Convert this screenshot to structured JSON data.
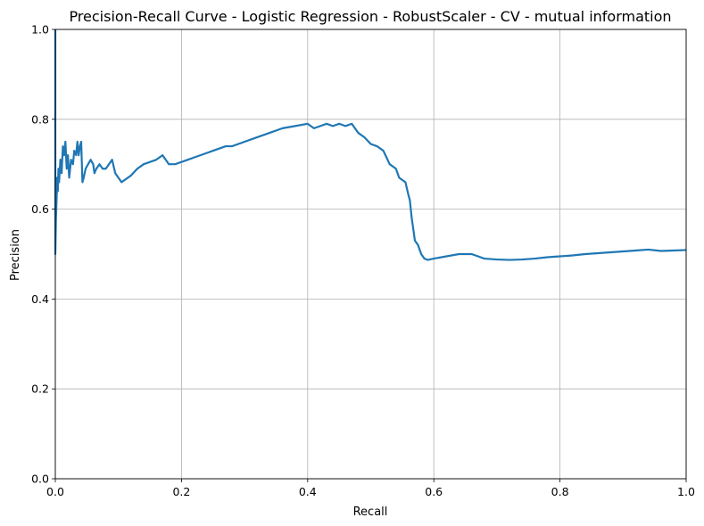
{
  "chart_data": {
    "type": "line",
    "title": "Precision-Recall Curve - Logistic Regression - RobustScaler - CV - mutual information",
    "xlabel": "Recall",
    "ylabel": "Precision",
    "xlim": [
      0,
      1
    ],
    "ylim": [
      0,
      1
    ],
    "grid": true,
    "xticks": [
      "0.0",
      "0.2",
      "0.4",
      "0.6",
      "0.8",
      "1.0"
    ],
    "yticks": [
      "0.0",
      "0.2",
      "0.4",
      "0.6",
      "0.8",
      "1.0"
    ],
    "series": [
      {
        "color": "#1f77b4",
        "recall": [
          0.0,
          0.0,
          0.0,
          0.001,
          0.002,
          0.003,
          0.004,
          0.005,
          0.006,
          0.008,
          0.01,
          0.012,
          0.014,
          0.016,
          0.018,
          0.02,
          0.022,
          0.025,
          0.028,
          0.03,
          0.033,
          0.035,
          0.037,
          0.039,
          0.041,
          0.043,
          0.045,
          0.048,
          0.052,
          0.056,
          0.06,
          0.062,
          0.065,
          0.07,
          0.075,
          0.08,
          0.085,
          0.09,
          0.095,
          0.1,
          0.105,
          0.11,
          0.12,
          0.13,
          0.14,
          0.15,
          0.16,
          0.17,
          0.175,
          0.18,
          0.19,
          0.2,
          0.21,
          0.22,
          0.23,
          0.24,
          0.25,
          0.26,
          0.27,
          0.28,
          0.3,
          0.32,
          0.34,
          0.36,
          0.38,
          0.4,
          0.41,
          0.42,
          0.43,
          0.44,
          0.45,
          0.46,
          0.47,
          0.475,
          0.48,
          0.49,
          0.5,
          0.51,
          0.52,
          0.525,
          0.53,
          0.54,
          0.545,
          0.55,
          0.555,
          0.56,
          0.562,
          0.565,
          0.568,
          0.57,
          0.575,
          0.58,
          0.585,
          0.59,
          0.6,
          0.62,
          0.64,
          0.66,
          0.67,
          0.68,
          0.7,
          0.72,
          0.74,
          0.76,
          0.78,
          0.8,
          0.82,
          0.84,
          0.86,
          0.88,
          0.9,
          0.92,
          0.94,
          0.96,
          0.98,
          1.0
        ],
        "precision": [
          1.0,
          0.55,
          0.5,
          0.58,
          0.62,
          0.67,
          0.64,
          0.69,
          0.66,
          0.71,
          0.68,
          0.74,
          0.72,
          0.75,
          0.69,
          0.72,
          0.67,
          0.71,
          0.7,
          0.73,
          0.72,
          0.75,
          0.72,
          0.74,
          0.75,
          0.66,
          0.67,
          0.69,
          0.7,
          0.71,
          0.7,
          0.68,
          0.69,
          0.7,
          0.69,
          0.69,
          0.7,
          0.71,
          0.68,
          0.67,
          0.66,
          0.665,
          0.675,
          0.69,
          0.7,
          0.705,
          0.71,
          0.72,
          0.71,
          0.7,
          0.7,
          0.705,
          0.71,
          0.715,
          0.72,
          0.725,
          0.73,
          0.735,
          0.74,
          0.74,
          0.75,
          0.76,
          0.77,
          0.78,
          0.785,
          0.79,
          0.78,
          0.785,
          0.79,
          0.785,
          0.79,
          0.785,
          0.79,
          0.78,
          0.77,
          0.76,
          0.745,
          0.74,
          0.73,
          0.715,
          0.7,
          0.69,
          0.67,
          0.665,
          0.66,
          0.63,
          0.62,
          0.58,
          0.55,
          0.53,
          0.52,
          0.5,
          0.49,
          0.487,
          0.49,
          0.495,
          0.5,
          0.5,
          0.495,
          0.49,
          0.488,
          0.487,
          0.488,
          0.49,
          0.493,
          0.495,
          0.497,
          0.5,
          0.502,
          0.504,
          0.506,
          0.508,
          0.51,
          0.507,
          0.508,
          0.509
        ]
      }
    ]
  }
}
